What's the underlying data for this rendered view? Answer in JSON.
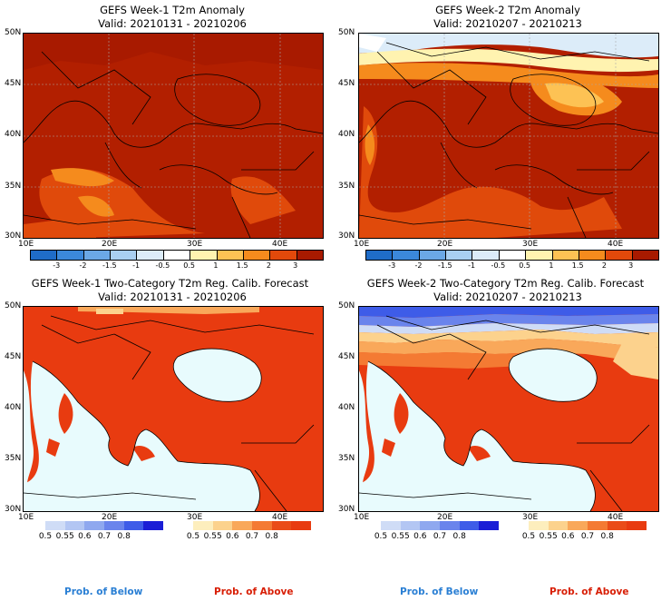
{
  "panels": {
    "p1": {
      "title": "GEFS Week-1 T2m Anomaly",
      "valid": "Valid: 20210131 - 20210206"
    },
    "p2": {
      "title": "GEFS Week-2 T2m Anomaly",
      "valid": "Valid: 20210207 - 20210213"
    },
    "p3": {
      "title": "GEFS Week-1 Two-Category T2m Reg. Calib. Forecast",
      "valid": "Valid: 20210131 - 20210206"
    },
    "p4": {
      "title": "GEFS Week-2 Two-Category T2m Reg. Calib. Forecast",
      "valid": "Valid: 20210207 - 20210213"
    }
  },
  "axes": {
    "lat_labels": [
      "50N",
      "45N",
      "40N",
      "35N",
      "30N"
    ],
    "lon_labels": [
      "10E",
      "20E",
      "30E",
      "40E"
    ]
  },
  "anomaly_colorbar": {
    "ticks": [
      "-3",
      "-2",
      "-1.5",
      "-1",
      "-0.5",
      "0.5",
      "1",
      "1.5",
      "2",
      "3"
    ],
    "colors": [
      "#1f6cc8",
      "#3b88db",
      "#6ba8e6",
      "#a9cff1",
      "#dcecf9",
      "#ffffff",
      "#fff3b0",
      "#fdc254",
      "#f58b1d",
      "#e2490b",
      "#a81a00"
    ]
  },
  "prob_bars": {
    "below": {
      "ticks": [
        "0.5",
        "0.55",
        "0.6",
        "0.7",
        "0.8"
      ],
      "colors": [
        "#cfdcf6",
        "#b3c6f3",
        "#8fa8ef",
        "#6a84ec",
        "#3e5ce8",
        "#1a1ed6"
      ]
    },
    "above": {
      "ticks": [
        "0.5",
        "0.55",
        "0.6",
        "0.7",
        "0.8"
      ],
      "colors": [
        "#fdeebd",
        "#fcd28d",
        "#f9a85a",
        "#f47a33",
        "#ea4c18",
        "#e83b10"
      ]
    }
  },
  "footer": {
    "below": "Prob. of Below",
    "above": "Prob. of Above"
  },
  "colors": {
    "below_label": "#2a7fd4",
    "above_label": "#d81e05",
    "sea": "#e8fbfd"
  }
}
